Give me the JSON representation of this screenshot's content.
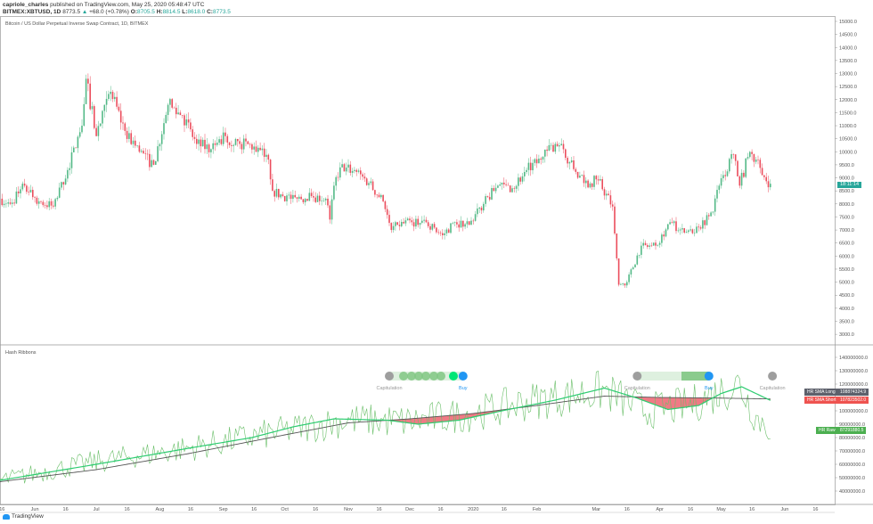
{
  "header": {
    "author": "capriole_charles",
    "published": "published on TradingView.com, May 25, 2020 05:48:47 UTC",
    "symbol": "BITMEX:XBTUSD, 1D",
    "last": "8773.5",
    "change": "+68.0 (+0.78%)",
    "o_label": "O:",
    "o": "8705.5",
    "h_label": "H:",
    "h": "8814.5",
    "l_label": "L:",
    "l": "8618.0",
    "c_label": "C:",
    "c": "8773.5"
  },
  "legend_title": "Bitcoin / US Dollar Perpetual Inverse Swap Contract, 1D, BITMEX",
  "indicator_title": "Hash Ribbons",
  "countdown": "18:11:14",
  "colors": {
    "up": "#53b987",
    "down": "#eb4d5c",
    "sma_short": "#2ecc71",
    "sma_long": "#555555",
    "raw": "#6abf69",
    "buy": "#2196f3",
    "capitulation": "#9e9e9e",
    "accent": "#26a69a"
  },
  "footer": {
    "brand": "TradingView",
    "icon": "tradingview-logo-icon"
  },
  "chart_data": [
    {
      "type": "candlestick",
      "title": "Bitcoin / US Dollar Perpetual Inverse Swap Contract, 1D, BITMEX",
      "ylim": [
        3000,
        15000
      ],
      "yticks": [
        "15000.0",
        "14500.0",
        "14000.0",
        "13500.0",
        "13000.0",
        "12500.0",
        "12000.0",
        "11500.0",
        "11000.0",
        "10500.0",
        "10000.0",
        "9500.0",
        "9000.0",
        "8500.0",
        "8000.0",
        "7500.0",
        "7000.0",
        "6500.0",
        "6000.0",
        "5500.0",
        "5000.0",
        "4500.0",
        "4000.0",
        "3500.0",
        "3000.0"
      ],
      "close_path": [
        [
          "2019-05-15",
          8200
        ],
        [
          "2019-05-20",
          8000
        ],
        [
          "2019-05-27",
          8700
        ],
        [
          "2019-06-03",
          8100
        ],
        [
          "2019-06-10",
          7900
        ],
        [
          "2019-06-17",
          9300
        ],
        [
          "2019-06-24",
          11000
        ],
        [
          "2019-06-26",
          12800
        ],
        [
          "2019-07-01",
          10600
        ],
        [
          "2019-07-08",
          12300
        ],
        [
          "2019-07-15",
          10800
        ],
        [
          "2019-07-22",
          10000
        ],
        [
          "2019-07-29",
          9500
        ],
        [
          "2019-08-05",
          11800
        ],
        [
          "2019-08-12",
          11400
        ],
        [
          "2019-08-19",
          10300
        ],
        [
          "2019-08-26",
          10100
        ],
        [
          "2019-09-02",
          10600
        ],
        [
          "2019-09-09",
          10300
        ],
        [
          "2019-09-16",
          10200
        ],
        [
          "2019-09-23",
          9700
        ],
        [
          "2019-09-25",
          8500
        ],
        [
          "2019-09-30",
          8300
        ],
        [
          "2019-10-07",
          8200
        ],
        [
          "2019-10-14",
          8300
        ],
        [
          "2019-10-21",
          8200
        ],
        [
          "2019-10-23",
          7400
        ],
        [
          "2019-10-25",
          8700
        ],
        [
          "2019-10-28",
          9400
        ],
        [
          "2019-11-04",
          9300
        ],
        [
          "2019-11-11",
          8800
        ],
        [
          "2019-11-18",
          8100
        ],
        [
          "2019-11-22",
          7000
        ],
        [
          "2019-11-25",
          7200
        ],
        [
          "2019-12-02",
          7300
        ],
        [
          "2019-12-09",
          7300
        ],
        [
          "2019-12-17",
          6800
        ],
        [
          "2019-12-23",
          7300
        ],
        [
          "2019-12-30",
          7200
        ],
        [
          "2020-01-06",
          8000
        ],
        [
          "2020-01-13",
          8700
        ],
        [
          "2020-01-20",
          8600
        ],
        [
          "2020-01-27",
          9300
        ],
        [
          "2020-02-03",
          9700
        ],
        [
          "2020-02-10",
          10300
        ],
        [
          "2020-02-13",
          10300
        ],
        [
          "2020-02-17",
          9600
        ],
        [
          "2020-02-24",
          8800
        ],
        [
          "2020-03-02",
          8900
        ],
        [
          "2020-03-09",
          7900
        ],
        [
          "2020-03-12",
          4900
        ],
        [
          "2020-03-16",
          5000
        ],
        [
          "2020-03-23",
          6400
        ],
        [
          "2020-03-30",
          6400
        ],
        [
          "2020-04-06",
          7300
        ],
        [
          "2020-04-13",
          6900
        ],
        [
          "2020-04-20",
          7100
        ],
        [
          "2020-04-27",
          7700
        ],
        [
          "2020-04-30",
          8700
        ],
        [
          "2020-05-07",
          9900
        ],
        [
          "2020-05-10",
          8700
        ],
        [
          "2020-05-14",
          9800
        ],
        [
          "2020-05-18",
          9700
        ],
        [
          "2020-05-21",
          9100
        ],
        [
          "2020-05-25",
          8773.5
        ]
      ],
      "xticks": [
        [
          "2019-05-16",
          "16"
        ],
        [
          "2019-06-01",
          "Jun"
        ],
        [
          "2019-06-16",
          "16"
        ],
        [
          "2019-07-01",
          "Jul"
        ],
        [
          "2019-07-16",
          "16"
        ],
        [
          "2019-08-01",
          "Aug"
        ],
        [
          "2019-08-16",
          "16"
        ],
        [
          "2019-09-01",
          "Sep"
        ],
        [
          "2019-09-16",
          "16"
        ],
        [
          "2019-10-01",
          "Oct"
        ],
        [
          "2019-10-16",
          "16"
        ],
        [
          "2019-11-01",
          "Nov"
        ],
        [
          "2019-11-16",
          "16"
        ],
        [
          "2019-12-01",
          "Dec"
        ],
        [
          "2019-12-16",
          "16"
        ],
        [
          "2020-01-01",
          "2020"
        ],
        [
          "2020-01-16",
          "16"
        ],
        [
          "2020-02-01",
          "Feb"
        ],
        [
          "2020-03-01",
          "Mar"
        ],
        [
          "2020-03-16",
          "16"
        ],
        [
          "2020-04-01",
          "Apr"
        ],
        [
          "2020-04-16",
          "16"
        ],
        [
          "2020-05-01",
          "May"
        ],
        [
          "2020-05-16",
          "16"
        ],
        [
          "2020-06-01",
          "Jun"
        ],
        [
          "2020-06-16",
          "16"
        ]
      ]
    },
    {
      "type": "line",
      "title": "Hash Ribbons",
      "ylim": [
        40000000,
        140000000
      ],
      "yticks": [
        "140000000.0",
        "130000000.0",
        "120000000.0",
        "100000000.0",
        "90000000.0",
        "80000000.0",
        "70000000.0",
        "60000000.0",
        "50000000.0",
        "40000000.0"
      ],
      "series": [
        {
          "name": "HR SMA Long",
          "last": "108874324.9",
          "points": [
            [
              "2019-05-15",
              47000000
            ],
            [
              "2019-07-01",
              56000000
            ],
            [
              "2019-08-15",
              68000000
            ],
            [
              "2019-10-01",
              82000000
            ],
            [
              "2019-11-01",
              91000000
            ],
            [
              "2019-12-01",
              94000000
            ],
            [
              "2020-01-01",
              98000000
            ],
            [
              "2020-02-01",
              104000000
            ],
            [
              "2020-03-05",
              111000000
            ],
            [
              "2020-04-01",
              110000000
            ],
            [
              "2020-05-01",
              109500000
            ],
            [
              "2020-05-25",
              108874324.9
            ]
          ]
        },
        {
          "name": "HR SMA Short",
          "last": "107823502.0",
          "points": [
            [
              "2019-05-15",
              48000000
            ],
            [
              "2019-07-01",
              60000000
            ],
            [
              "2019-08-15",
              72000000
            ],
            [
              "2019-09-15",
              80000000
            ],
            [
              "2019-10-05",
              88000000
            ],
            [
              "2019-10-25",
              94000000
            ],
            [
              "2019-11-20",
              93000000
            ],
            [
              "2019-12-05",
              90000000
            ],
            [
              "2019-12-25",
              93000000
            ],
            [
              "2020-01-15",
              100000000
            ],
            [
              "2020-02-10",
              108000000
            ],
            [
              "2020-03-05",
              117000000
            ],
            [
              "2020-03-20",
              110000000
            ],
            [
              "2020-04-05",
              101000000
            ],
            [
              "2020-04-20",
              104000000
            ],
            [
              "2020-05-01",
              113000000
            ],
            [
              "2020-05-11",
              118000000
            ],
            [
              "2020-05-25",
              107823502.0
            ]
          ]
        },
        {
          "name": "HR Raw",
          "last": "87291880.5",
          "points": [
            [
              "2019-05-15",
              48000000
            ],
            [
              "2019-07-01",
              62000000
            ],
            [
              "2019-08-15",
              72000000
            ],
            [
              "2019-10-01",
              85000000
            ],
            [
              "2019-11-01",
              93000000
            ],
            [
              "2019-12-01",
              92000000
            ],
            [
              "2020-01-01",
              98000000
            ],
            [
              "2020-02-01",
              108000000
            ],
            [
              "2020-03-05",
              115000000
            ],
            [
              "2020-03-25",
              100000000
            ],
            [
              "2020-04-15",
              104000000
            ],
            [
              "2020-05-10",
              120000000
            ],
            [
              "2020-05-18",
              95000000
            ],
            [
              "2020-05-25",
              87291880.5
            ]
          ]
        }
      ],
      "signals": [
        {
          "date": "2019-11-21",
          "type": "Capitulation",
          "label": "Capitulation"
        },
        {
          "date": "2019-12-27",
          "type": "Buy",
          "label": "Buy"
        },
        {
          "date": "2020-03-21",
          "type": "Capitulation",
          "label": "Capitulation"
        },
        {
          "date": "2020-04-25",
          "type": "Buy",
          "label": "Buy"
        },
        {
          "date": "2020-05-26",
          "type": "Capitulation",
          "label": "Capitulation"
        }
      ]
    }
  ]
}
